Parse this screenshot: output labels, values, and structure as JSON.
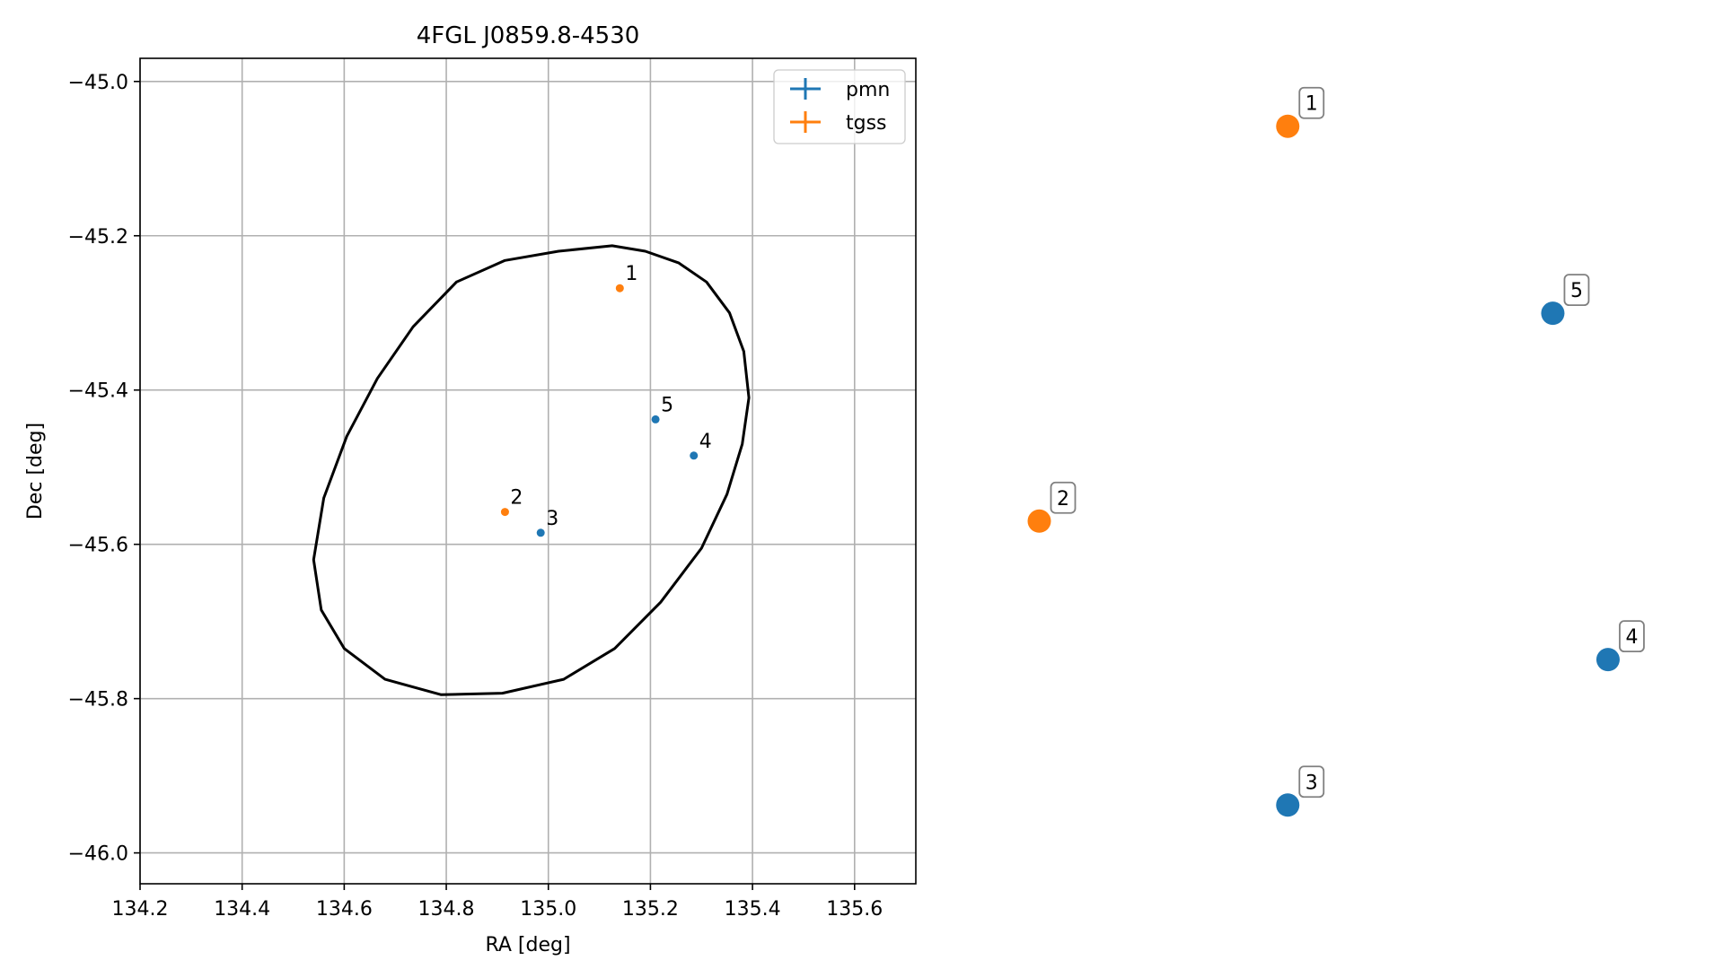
{
  "chart_data": [
    {
      "type": "scatter",
      "title": "4FGL J0859.8-4530",
      "xlabel": "RA [deg]",
      "ylabel": "Dec [deg]",
      "xlim": [
        134.2,
        135.72
      ],
      "ylim": [
        -46.04,
        -44.97
      ],
      "xticks": [
        134.2,
        134.4,
        134.6,
        134.8,
        135.0,
        135.2,
        135.4,
        135.6
      ],
      "xtick_labels": [
        "134.2",
        "134.4",
        "134.6",
        "134.8",
        "135.0",
        "135.2",
        "135.4",
        "135.6"
      ],
      "yticks": [
        -45.0,
        -45.2,
        -45.4,
        -45.6,
        -45.8,
        -46.0
      ],
      "ytick_labels": [
        "−45.0",
        "−45.2",
        "−45.4",
        "−45.6",
        "−45.8",
        "−46.0"
      ],
      "grid": true,
      "legend": "top-right",
      "series": [
        {
          "name": "pmn",
          "color": "#1f77b4",
          "points": [
            {
              "label": "3",
              "x": 134.985,
              "y": -45.585
            },
            {
              "label": "4",
              "x": 135.285,
              "y": -45.485
            },
            {
              "label": "5",
              "x": 135.21,
              "y": -45.438
            }
          ]
        },
        {
          "name": "tgss",
          "color": "#ff7f0e",
          "points": [
            {
              "label": "1",
              "x": 135.14,
              "y": -45.268
            },
            {
              "label": "2",
              "x": 134.915,
              "y": -45.558
            }
          ]
        }
      ],
      "ellipse": {
        "color": "#000000",
        "points": [
          [
            135.125,
            -45.213
          ],
          [
            135.19,
            -45.22
          ],
          [
            135.255,
            -45.235
          ],
          [
            135.31,
            -45.26
          ],
          [
            135.355,
            -45.3
          ],
          [
            135.383,
            -45.35
          ],
          [
            135.393,
            -45.41
          ],
          [
            135.38,
            -45.47
          ],
          [
            135.35,
            -45.535
          ],
          [
            135.3,
            -45.605
          ],
          [
            135.22,
            -45.675
          ],
          [
            135.13,
            -45.735
          ],
          [
            135.03,
            -45.775
          ],
          [
            134.91,
            -45.793
          ],
          [
            134.79,
            -45.795
          ],
          [
            134.68,
            -45.775
          ],
          [
            134.6,
            -45.735
          ],
          [
            134.555,
            -45.685
          ],
          [
            134.54,
            -45.62
          ],
          [
            134.56,
            -45.54
          ],
          [
            134.605,
            -45.46
          ],
          [
            134.665,
            -45.385
          ],
          [
            134.735,
            -45.318
          ],
          [
            134.82,
            -45.26
          ],
          [
            134.915,
            -45.232
          ],
          [
            135.02,
            -45.22
          ]
        ]
      }
    },
    {
      "type": "scatter",
      "title": "",
      "series": [
        {
          "name": "pmn",
          "color": "#1f77b4",
          "points": [
            {
              "label": "3",
              "x": 0.35,
              "y": 0.01
            },
            {
              "label": "4",
              "x": 0.93,
              "y": 0.22
            },
            {
              "label": "5",
              "x": 0.83,
              "y": 0.72
            }
          ]
        },
        {
          "name": "tgss",
          "color": "#ff7f0e",
          "points": [
            {
              "label": "1",
              "x": 0.35,
              "y": 0.99
            },
            {
              "label": "2",
              "x": -0.1,
              "y": 0.42
            }
          ]
        }
      ]
    }
  ]
}
